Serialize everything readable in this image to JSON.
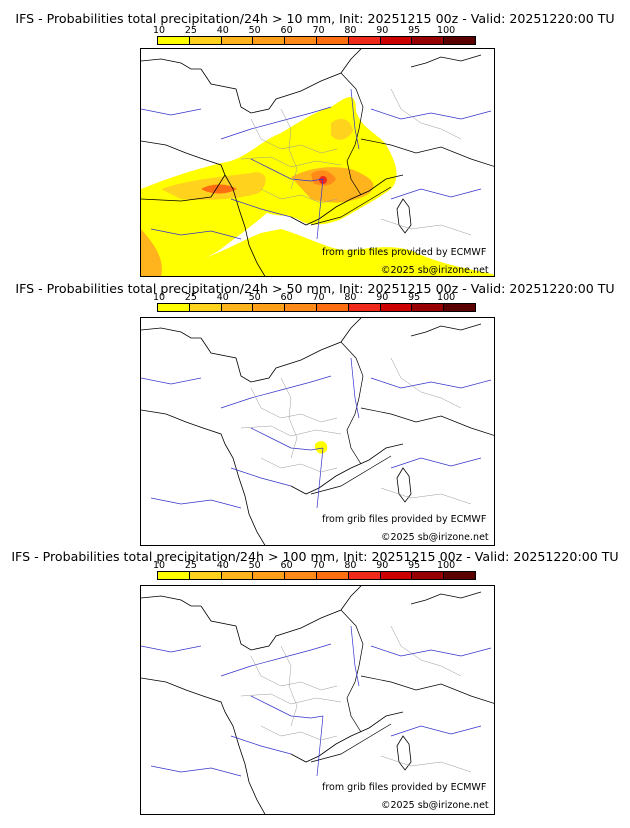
{
  "colorbar": {
    "ticks": [
      "10",
      "25",
      "40",
      "50",
      "60",
      "70",
      "80",
      "90",
      "95",
      "100"
    ],
    "colors": [
      "#ffff00",
      "#ffd21e",
      "#ffb41e",
      "#ff9f1a",
      "#ff8a1a",
      "#ff6e10",
      "#f02a1a",
      "#cc0000",
      "#960000",
      "#5a0000"
    ]
  },
  "panels": [
    {
      "title": "IFS - Probabilities total precipitation/24h > 10 mm, Init: 20251215 00z - Valid: 20251220:00 TU"
    },
    {
      "title": "IFS - Probabilities total precipitation/24h > 50 mm, Init: 20251215 00z - Valid: 20251220:00 TU"
    },
    {
      "title": "IFS - Probabilities total precipitation/24h > 100 mm, Init: 20251215 00z - Valid: 20251220:00 TU"
    }
  ],
  "credit_source": "from grib files provided by ECMWF",
  "credit_copyright": "©2025 sb@irizone.net",
  "map_colors": {
    "coast": "#000000",
    "rivers": "#3333cc",
    "borders": "#999999"
  }
}
